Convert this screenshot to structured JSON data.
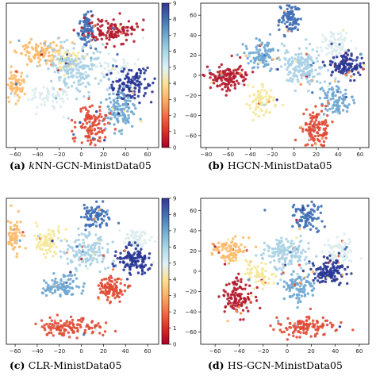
{
  "chart_data": [
    {
      "type": "scatter",
      "panel": "a",
      "caption_letter": "(a)",
      "caption_em": "k",
      "caption_rest": "NN-GCN-MinistData05",
      "xticks": [
        -60,
        -40,
        -20,
        0,
        20,
        40,
        60
      ],
      "yticks": [],
      "xlim": [
        -68,
        70
      ],
      "ylim": [
        -72,
        70
      ],
      "colorbar": true,
      "clusters": [
        {
          "label": 8,
          "x": 5,
          "y": 45,
          "sx": 4,
          "sy": 9,
          "n": 90
        },
        {
          "label": 0,
          "x": 28,
          "y": 42,
          "sx": 12,
          "sy": 6,
          "n": 120
        },
        {
          "label": 3,
          "x": -38,
          "y": 22,
          "sx": 10,
          "sy": 6,
          "n": 110
        },
        {
          "label": 4,
          "x": -12,
          "y": 14,
          "sx": 6,
          "sy": 5,
          "n": 60
        },
        {
          "label": 6,
          "x": -5,
          "y": 5,
          "sx": 12,
          "sy": 12,
          "n": 180
        },
        {
          "label": 5,
          "x": 28,
          "y": 8,
          "sx": 10,
          "sy": 6,
          "n": 50
        },
        {
          "label": 9,
          "x": 45,
          "y": -10,
          "sx": 9,
          "sy": 8,
          "n": 130
        },
        {
          "label": 3,
          "x": -60,
          "y": -10,
          "sx": 5,
          "sy": 8,
          "n": 80
        },
        {
          "label": 5,
          "x": -30,
          "y": -22,
          "sx": 8,
          "sy": 6,
          "n": 60
        },
        {
          "label": 7,
          "x": 35,
          "y": -35,
          "sx": 8,
          "sy": 9,
          "n": 120
        },
        {
          "label": 1,
          "x": 10,
          "y": -50,
          "sx": 7,
          "sy": 10,
          "n": 130
        }
      ]
    },
    {
      "type": "scatter",
      "panel": "b",
      "caption_letter": "(b)",
      "caption_em": "",
      "caption_rest": "HGCN-MinistData05",
      "xticks": [
        -80,
        -60,
        -40,
        -20,
        0,
        20,
        40,
        60
      ],
      "yticks": [
        60,
        40,
        20,
        0,
        -20,
        -40,
        -60
      ],
      "xlim": [
        -85,
        68
      ],
      "ylim": [
        -72,
        72
      ],
      "colorbar": false,
      "clusters": [
        {
          "label": 8,
          "x": -5,
          "y": 55,
          "sx": 5,
          "sy": 8,
          "n": 90
        },
        {
          "label": 5,
          "x": 38,
          "y": 30,
          "sx": 7,
          "sy": 8,
          "n": 80
        },
        {
          "label": 6,
          "x": 10,
          "y": 10,
          "sx": 10,
          "sy": 10,
          "n": 170
        },
        {
          "label": 7,
          "x": -30,
          "y": 20,
          "sx": 8,
          "sy": 7,
          "n": 100
        },
        {
          "label": 9,
          "x": 50,
          "y": 10,
          "sx": 8,
          "sy": 6,
          "n": 130
        },
        {
          "label": 0,
          "x": -60,
          "y": -2,
          "sx": 9,
          "sy": 6,
          "n": 130
        },
        {
          "label": 4,
          "x": -30,
          "y": -25,
          "sx": 6,
          "sy": 8,
          "n": 80
        },
        {
          "label": 7,
          "x": 40,
          "y": -25,
          "sx": 8,
          "sy": 8,
          "n": 100
        },
        {
          "label": 1,
          "x": 20,
          "y": -55,
          "sx": 6,
          "sy": 10,
          "n": 130
        }
      ]
    },
    {
      "type": "scatter",
      "panel": "c",
      "caption_letter": "(c)",
      "caption_em": "",
      "caption_rest": "CLR-MinistData05",
      "xticks": [
        -60,
        -40,
        -20,
        0,
        20,
        40,
        60
      ],
      "yticks": [],
      "xlim": [
        -68,
        70
      ],
      "ylim": [
        -72,
        72
      ],
      "colorbar": true,
      "clusters": [
        {
          "label": 8,
          "x": 12,
          "y": 55,
          "sx": 6,
          "sy": 6,
          "n": 90
        },
        {
          "label": 3,
          "x": -62,
          "y": 35,
          "sx": 4,
          "sy": 9,
          "n": 80
        },
        {
          "label": 4,
          "x": -30,
          "y": 30,
          "sx": 7,
          "sy": 6,
          "n": 80
        },
        {
          "label": 6,
          "x": 5,
          "y": 18,
          "sx": 10,
          "sy": 8,
          "n": 150
        },
        {
          "label": 5,
          "x": 50,
          "y": 30,
          "sx": 6,
          "sy": 7,
          "n": 70
        },
        {
          "label": 9,
          "x": 48,
          "y": 10,
          "sx": 7,
          "sy": 7,
          "n": 120
        },
        {
          "label": 7,
          "x": -18,
          "y": -15,
          "sx": 8,
          "sy": 6,
          "n": 100
        },
        {
          "label": 1,
          "x": 28,
          "y": -18,
          "sx": 6,
          "sy": 6,
          "n": 100
        },
        {
          "label": 1,
          "x": -10,
          "y": -55,
          "sx": 14,
          "sy": 5,
          "n": 120
        }
      ]
    },
    {
      "type": "scatter",
      "panel": "d",
      "caption_letter": "(d)",
      "caption_em": "",
      "caption_rest": "HS-GCN-MinistData05",
      "xticks": [
        -60,
        -40,
        -20,
        0,
        20,
        40,
        60
      ],
      "yticks": [
        60,
        40,
        20,
        0,
        -20,
        -40,
        -60
      ],
      "xlim": [
        -72,
        68
      ],
      "ylim": [
        -72,
        72
      ],
      "colorbar": false,
      "clusters": [
        {
          "label": 8,
          "x": 15,
          "y": 55,
          "sx": 7,
          "sy": 7,
          "n": 90
        },
        {
          "label": 3,
          "x": -48,
          "y": 20,
          "sx": 8,
          "sy": 6,
          "n": 90
        },
        {
          "label": 6,
          "x": -2,
          "y": 18,
          "sx": 10,
          "sy": 8,
          "n": 150
        },
        {
          "label": 5,
          "x": 45,
          "y": 22,
          "sx": 6,
          "sy": 7,
          "n": 70
        },
        {
          "label": 4,
          "x": -22,
          "y": -2,
          "sx": 6,
          "sy": 6,
          "n": 60
        },
        {
          "label": 9,
          "x": 35,
          "y": 0,
          "sx": 8,
          "sy": 6,
          "n": 130
        },
        {
          "label": 0,
          "x": -40,
          "y": -25,
          "sx": 6,
          "sy": 9,
          "n": 120
        },
        {
          "label": 7,
          "x": 10,
          "y": -15,
          "sx": 7,
          "sy": 7,
          "n": 90
        },
        {
          "label": 1,
          "x": 15,
          "y": -55,
          "sx": 12,
          "sy": 5,
          "n": 120
        }
      ]
    }
  ],
  "colorbar": {
    "ticks": [
      0,
      1,
      2,
      3,
      4,
      5,
      6,
      7,
      8,
      9
    ],
    "colors": [
      "#a50026",
      "#d73027",
      "#f46d43",
      "#fdae61",
      "#fee090",
      "#e0f3f8",
      "#abd9e9",
      "#74add1",
      "#4575b4",
      "#313695"
    ]
  },
  "palette": [
    "#b2182b",
    "#e04b35",
    "#f4874b",
    "#fdbb6c",
    "#f5e89a",
    "#dcecee",
    "#a8d0e4",
    "#6fa7d1",
    "#3f6fb5",
    "#283593"
  ]
}
